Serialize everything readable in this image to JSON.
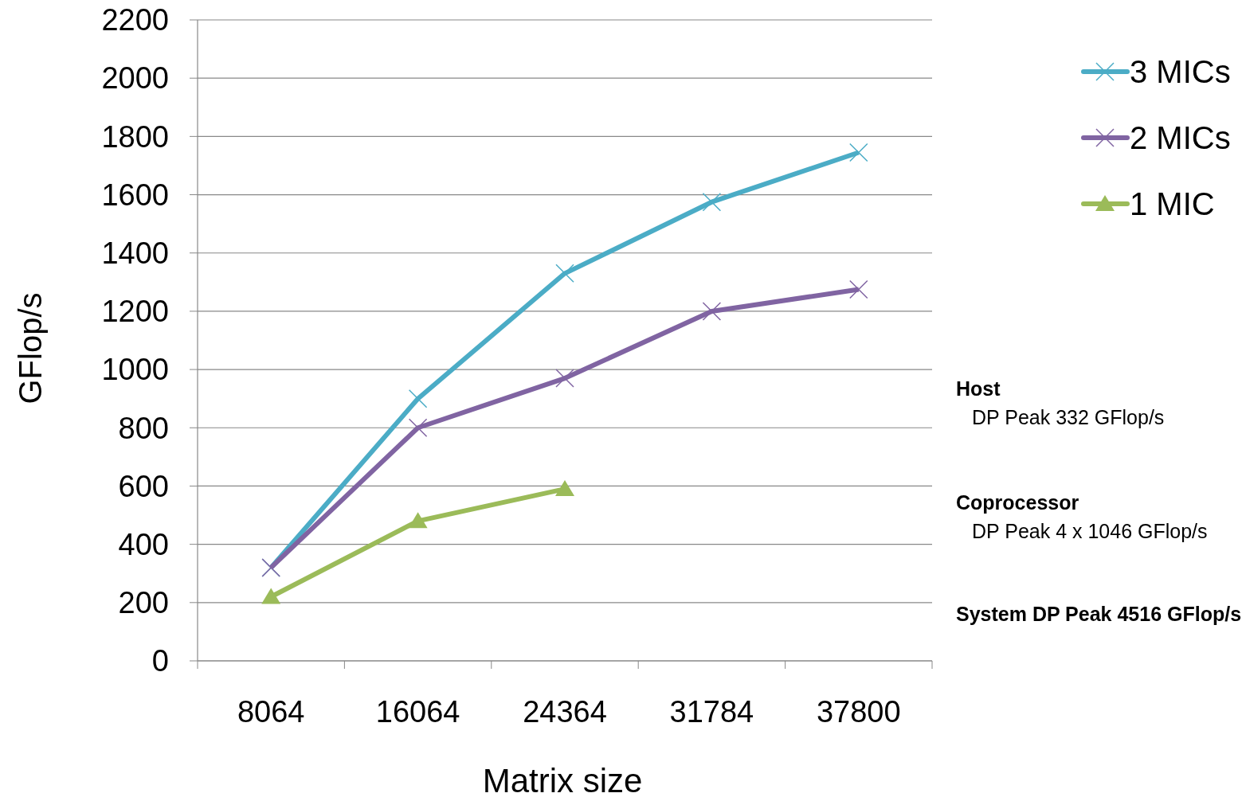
{
  "chart_data": {
    "type": "line",
    "xlabel": "Matrix size",
    "ylabel": "GFlop/s",
    "categories": [
      "8064",
      "16064",
      "24364",
      "31784",
      "37800"
    ],
    "series": [
      {
        "name": "3 MICs",
        "color": "#4bacc6",
        "marker": "cross",
        "values": [
          320,
          900,
          1330,
          1575,
          1745
        ]
      },
      {
        "name": "2 MICs",
        "color": "#8064a2",
        "marker": "cross",
        "values": [
          320,
          800,
          970,
          1200,
          1275
        ]
      },
      {
        "name": "1 MIC",
        "color": "#9bbb59",
        "marker": "triangle",
        "values": [
          220,
          480,
          590,
          null,
          null
        ]
      }
    ],
    "ylim": [
      0,
      2200
    ],
    "yticks": [
      0,
      200,
      400,
      600,
      800,
      1000,
      1200,
      1400,
      1600,
      1800,
      2000,
      2200
    ],
    "grid": "y",
    "legend": "top right",
    "annotations": [
      "Host",
      "DP Peak  332 GFlop/s",
      "Coprocessor",
      "DP Peak 4 x 1046 GFlop/s",
      "System DP Peak 4516 GFlop/s"
    ]
  }
}
